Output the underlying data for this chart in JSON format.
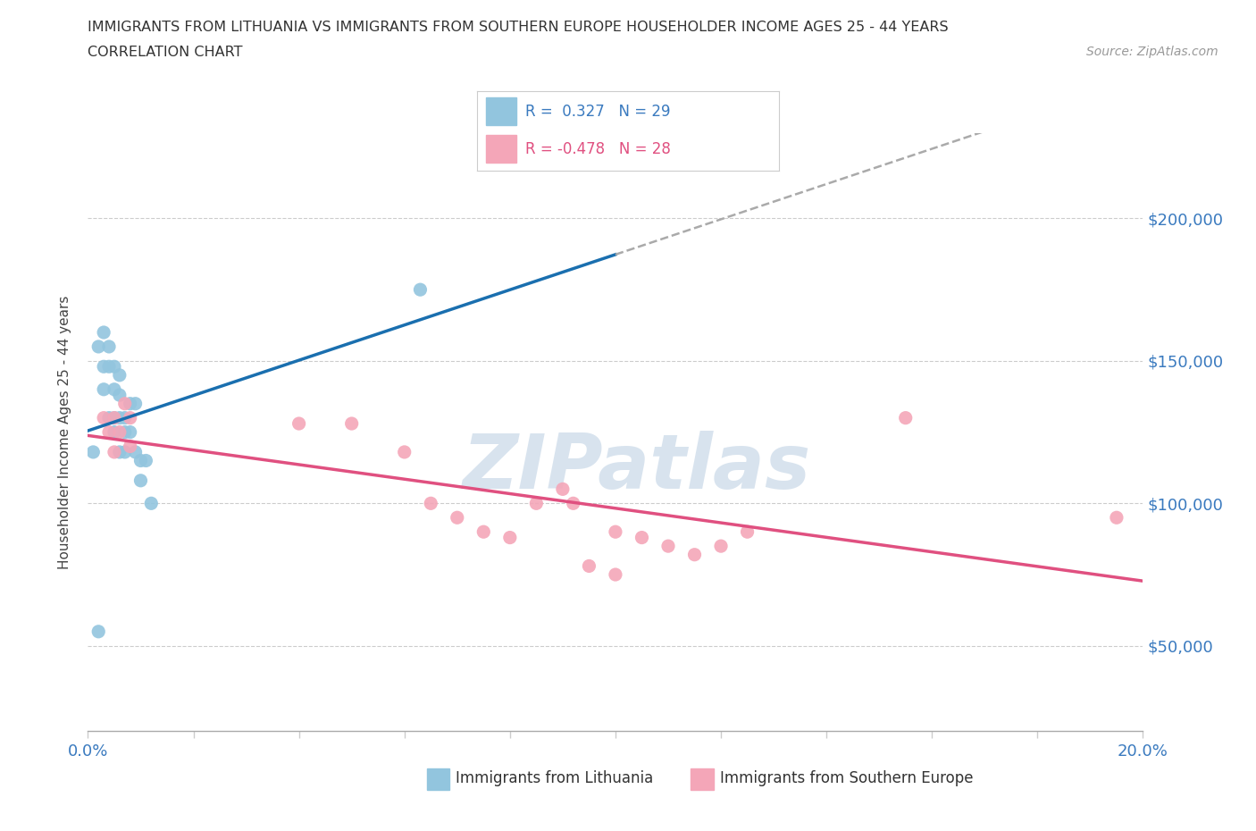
{
  "title_line1": "IMMIGRANTS FROM LITHUANIA VS IMMIGRANTS FROM SOUTHERN EUROPE HOUSEHOLDER INCOME AGES 25 - 44 YEARS",
  "title_line2": "CORRELATION CHART",
  "source_text": "Source: ZipAtlas.com",
  "ylabel": "Householder Income Ages 25 - 44 years",
  "xlim": [
    0.0,
    0.2
  ],
  "ylim": [
    20000,
    230000
  ],
  "yticks": [
    50000,
    100000,
    150000,
    200000
  ],
  "ytick_labels": [
    "$50,000",
    "$100,000",
    "$150,000",
    "$200,000"
  ],
  "xticks": [
    0.0,
    0.02,
    0.04,
    0.06,
    0.08,
    0.1,
    0.12,
    0.14,
    0.16,
    0.18,
    0.2
  ],
  "color_blue": "#92c5de",
  "color_pink": "#f4a6b8",
  "trendline_blue": "#1a6faf",
  "trendline_pink": "#e05080",
  "trendline_grey": "#aaaaaa",
  "watermark_color": "#c8d8e8",
  "lithuania_x": [
    0.001,
    0.002,
    0.003,
    0.003,
    0.003,
    0.004,
    0.004,
    0.004,
    0.005,
    0.005,
    0.005,
    0.005,
    0.006,
    0.006,
    0.006,
    0.006,
    0.007,
    0.007,
    0.007,
    0.008,
    0.008,
    0.009,
    0.009,
    0.01,
    0.01,
    0.011,
    0.012,
    0.063,
    0.002
  ],
  "lithuania_y": [
    118000,
    155000,
    160000,
    148000,
    140000,
    155000,
    148000,
    130000,
    148000,
    140000,
    130000,
    125000,
    145000,
    138000,
    130000,
    118000,
    130000,
    125000,
    118000,
    135000,
    125000,
    135000,
    118000,
    115000,
    108000,
    115000,
    100000,
    175000,
    55000
  ],
  "southern_x": [
    0.003,
    0.004,
    0.005,
    0.005,
    0.006,
    0.007,
    0.008,
    0.008,
    0.04,
    0.05,
    0.06,
    0.065,
    0.07,
    0.075,
    0.08,
    0.085,
    0.09,
    0.092,
    0.095,
    0.1,
    0.1,
    0.105,
    0.11,
    0.115,
    0.12,
    0.125,
    0.155,
    0.195
  ],
  "southern_y": [
    130000,
    125000,
    130000,
    118000,
    125000,
    135000,
    130000,
    120000,
    128000,
    128000,
    118000,
    100000,
    95000,
    90000,
    88000,
    100000,
    105000,
    100000,
    78000,
    75000,
    90000,
    88000,
    85000,
    82000,
    85000,
    90000,
    130000,
    95000
  ]
}
